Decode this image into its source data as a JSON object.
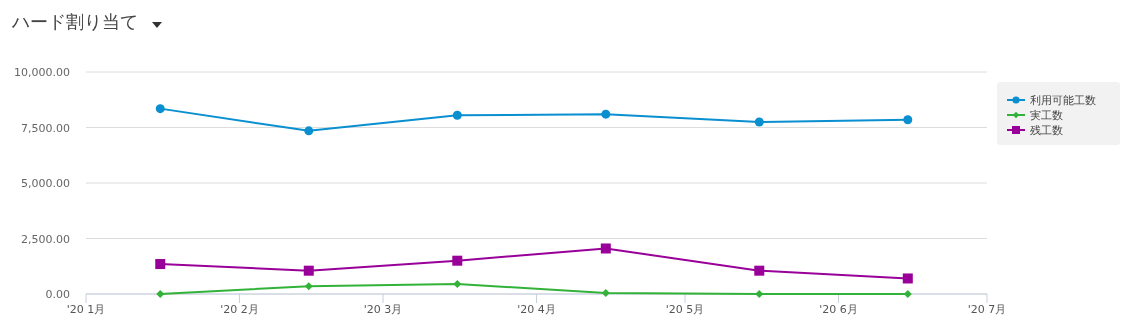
{
  "chart_data": {
    "type": "line",
    "title": "ハード割り当て",
    "x": [
      "2020-01-16",
      "2020-02-15",
      "2020-03-16",
      "2020-04-15",
      "2020-05-16",
      "2020-06-15"
    ],
    "series": [
      {
        "name": "利用可能工数",
        "color": "#0a8fd0",
        "marker": "circle",
        "values": [
          8350,
          7350,
          8050,
          8100,
          7750,
          7850
        ]
      },
      {
        "name": "実工数",
        "color": "#33b23a",
        "marker": "diamond",
        "values": [
          0,
          350,
          450,
          50,
          0,
          0
        ]
      },
      {
        "name": "残工数",
        "color": "#990099",
        "marker": "square",
        "values": [
          1350,
          1050,
          1500,
          2050,
          1050,
          700
        ]
      }
    ],
    "xlim": [
      "2020-01-01",
      "2020-07-01"
    ],
    "xticks": [
      {
        "value": "2020-01-01",
        "label": "'20 1月"
      },
      {
        "value": "2020-02-01",
        "label": "'20 2月"
      },
      {
        "value": "2020-03-01",
        "label": "'20 3月"
      },
      {
        "value": "2020-04-01",
        "label": "'20 4月"
      },
      {
        "value": "2020-05-01",
        "label": "'20 5月"
      },
      {
        "value": "2020-06-01",
        "label": "'20 6月"
      },
      {
        "value": "2020-07-01",
        "label": "'20 7月"
      }
    ],
    "ylim": [
      0,
      10000
    ],
    "yticks": [
      {
        "value": 0,
        "label": "0.00"
      },
      {
        "value": 2500,
        "label": "2,500.00"
      },
      {
        "value": 5000,
        "label": "5,000.00"
      },
      {
        "value": 7500,
        "label": "7,500.00"
      },
      {
        "value": 10000,
        "label": "10,000.00"
      }
    ],
    "grid": "y",
    "legend": "top right",
    "line_style": "solid"
  }
}
